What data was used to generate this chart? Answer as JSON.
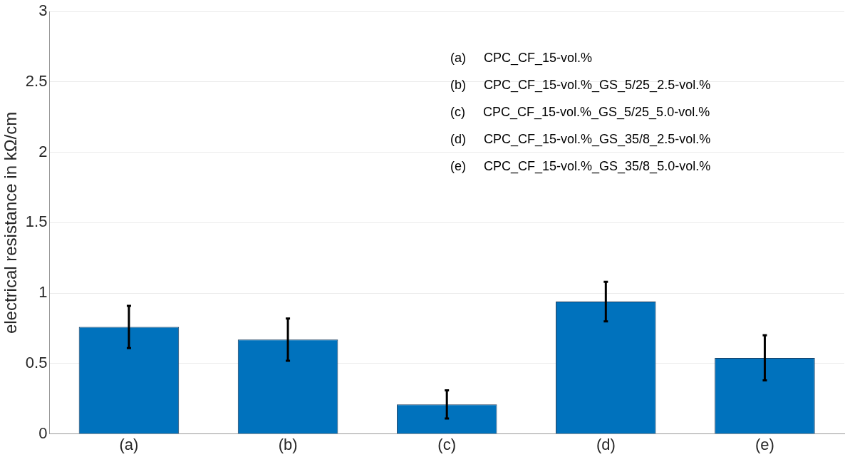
{
  "chart_data": {
    "type": "bar",
    "ylabel": "electrical resistance in kΩ/cm",
    "categories": [
      "(a)",
      "(b)",
      "(c)",
      "(d)",
      "(e)"
    ],
    "values": [
      0.76,
      0.67,
      0.21,
      0.94,
      0.54
    ],
    "errors": [
      0.15,
      0.15,
      0.1,
      0.14,
      0.16
    ],
    "color": "#0072bd",
    "ylim": [
      0,
      3
    ],
    "yticks": [
      0,
      0.5,
      1,
      1.5,
      2,
      2.5,
      3
    ],
    "grid": "y",
    "legend": false,
    "annotations": [
      "(a)     CPC_CF_15-vol.%",
      "(b)     CPC_CF_15-vol.%_GS_5/25_2.5-vol.%",
      "(c)     CPC_CF_15-vol.%_GS_5/25_5.0-vol.%",
      "(d)     CPC_CF_15-vol.%_GS_35/8_2.5-vol.%",
      "(e)     CPC_CF_15-vol.%_GS_35/8_5.0-vol.%"
    ]
  }
}
